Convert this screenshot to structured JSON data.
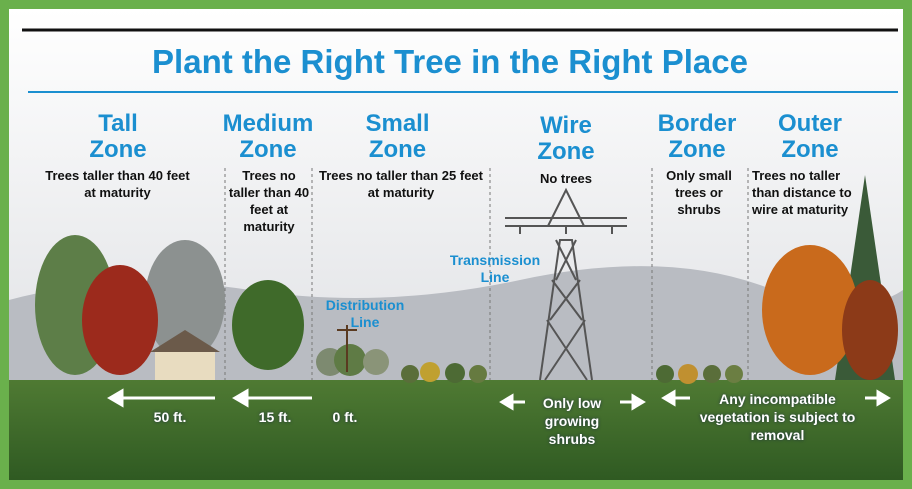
{
  "title": "Plant the Right Tree in the Right Place",
  "zones": [
    {
      "name": "Tall Zone",
      "description": "Trees taller than 40 feet at maturity"
    },
    {
      "name": "Medium Zone",
      "description": "Trees no taller than 40 feet at maturity"
    },
    {
      "name": "Small Zone",
      "description": "Trees no taller than 25 feet at maturity"
    },
    {
      "name": "Wire Zone",
      "description": "No trees"
    },
    {
      "name": "Border Zone",
      "description": "Only small trees or shrubs"
    },
    {
      "name": "Outer Zone",
      "description": "Trees no taller than distance to wire at maturity"
    }
  ],
  "labels": {
    "transmission": "Transmission Line",
    "distribution": "Distribution Line"
  },
  "distances": [
    "50 ft.",
    "15 ft.",
    "0 ft."
  ],
  "notes": {
    "wire": "Only low growing shrubs",
    "border": "Any incompatible vegetation is subject to removal"
  }
}
